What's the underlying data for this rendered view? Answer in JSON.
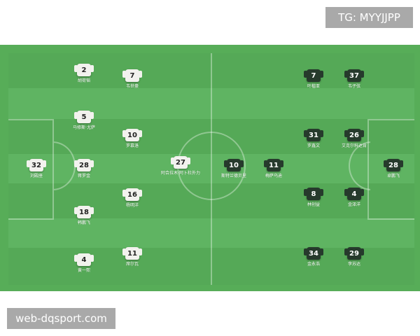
{
  "watermarks": {
    "top": "TG: MYYJJPP",
    "bottom": "web-dqsport.com"
  },
  "colors": {
    "pitch": "#5fb462",
    "home_jersey": "#f2f2ee",
    "away_jersey": "#263a2c"
  },
  "home": [
    {
      "number": "2",
      "name": "胡荷韬"
    },
    {
      "number": "7",
      "name": "韦世豪"
    },
    {
      "number": "5",
      "name": "马修斯·尤萨"
    },
    {
      "number": "10",
      "name": "罗慕洛"
    },
    {
      "number": "32",
      "name": "刘殿座"
    },
    {
      "number": "28",
      "name": "蒋罗金"
    },
    {
      "number": "27",
      "name": "阿合拉木·阿卜杜外力"
    },
    {
      "number": "16",
      "name": "杨明洋"
    },
    {
      "number": "18",
      "name": "韩鹏飞"
    },
    {
      "number": "4",
      "name": "黄一熙"
    },
    {
      "number": "11",
      "name": "席尔瓦"
    }
  ],
  "away": [
    {
      "number": "7",
      "name": "叶楷亚"
    },
    {
      "number": "37",
      "name": "韦子弦"
    },
    {
      "number": "31",
      "name": "罗鑫文"
    },
    {
      "number": "26",
      "name": "艾克尔科达肯"
    },
    {
      "number": "10",
      "name": "斯特兰德贝里"
    },
    {
      "number": "11",
      "name": "梅萨乌迪"
    },
    {
      "number": "28",
      "name": "卓鹏飞"
    },
    {
      "number": "8",
      "name": "林创益"
    },
    {
      "number": "4",
      "name": "金泽洋"
    },
    {
      "number": "34",
      "name": "金永浩"
    },
    {
      "number": "29",
      "name": "李苏达"
    }
  ]
}
